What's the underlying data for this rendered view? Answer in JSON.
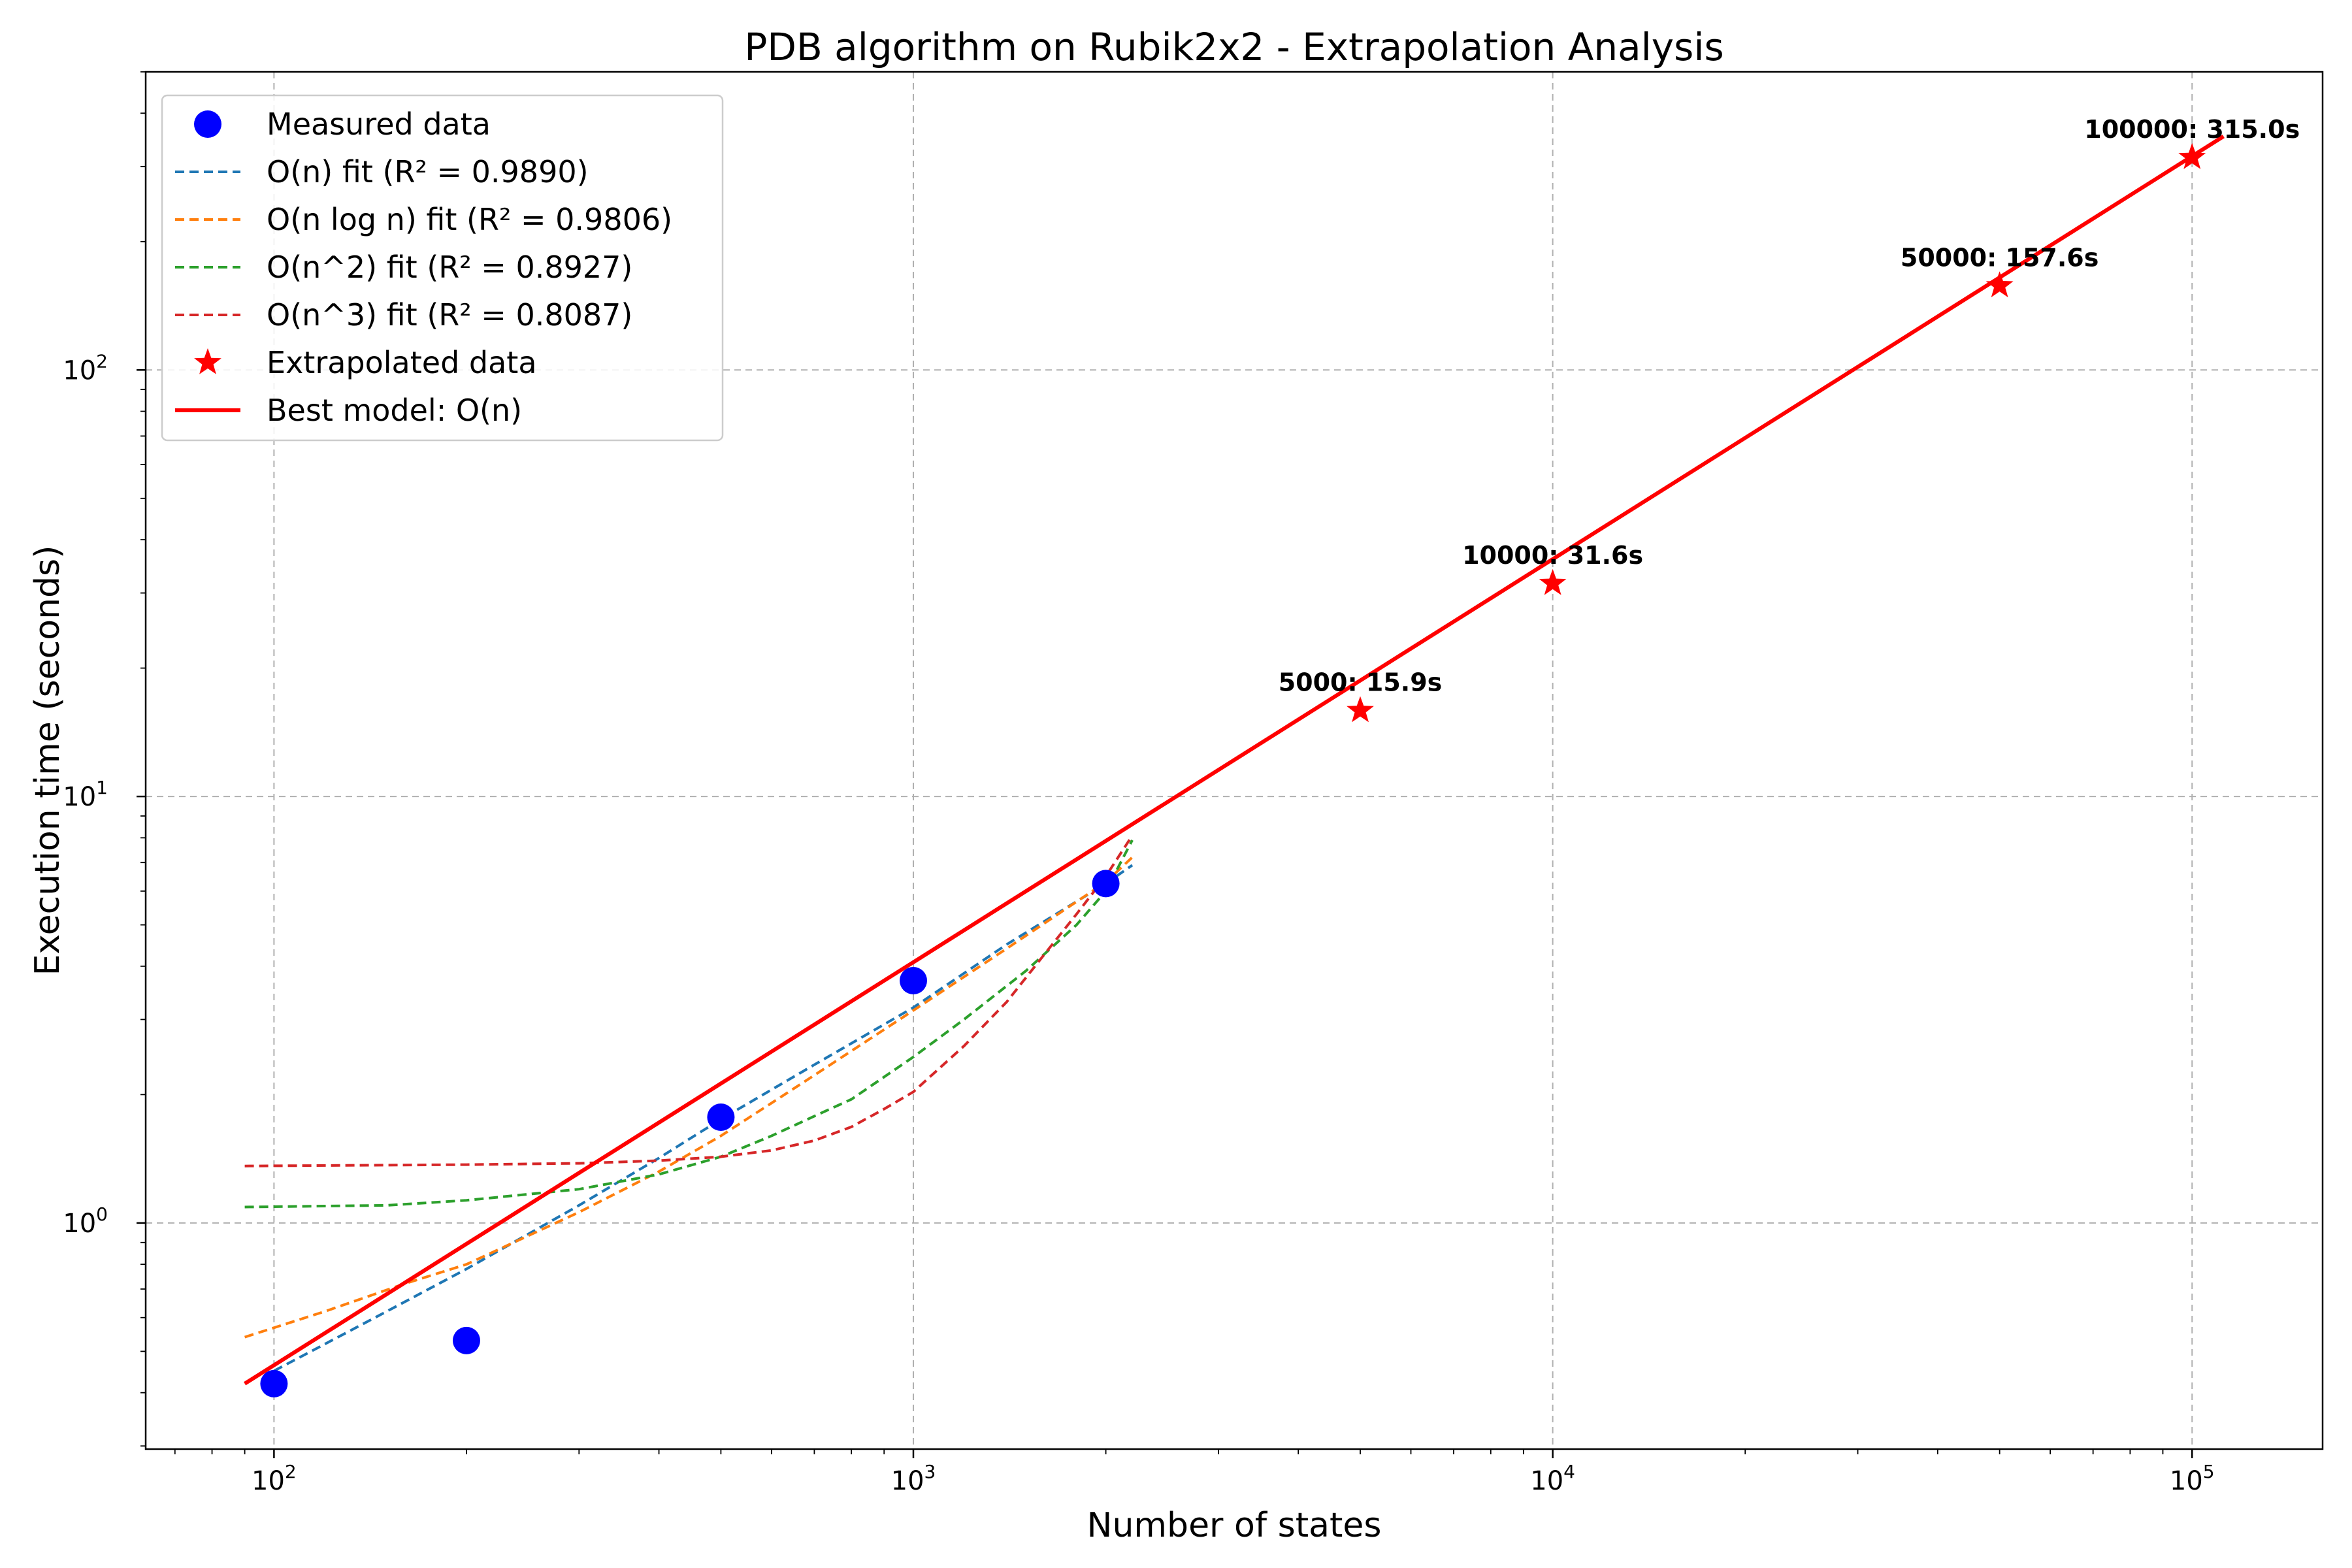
{
  "chart_data": {
    "type": "line",
    "title": "PDB algorithm on Rubik2x2 - Extrapolation Analysis",
    "xlabel": "Number of states",
    "ylabel": "Execution time (seconds)",
    "xscale": "log",
    "yscale": "log",
    "xlim": [
      63,
      160000
    ],
    "ylim": [
      0.295,
      500
    ],
    "grid": true,
    "legend_position": "top-left",
    "x_ticks": [
      {
        "base": "10",
        "exp": "2",
        "value": 100
      },
      {
        "base": "10",
        "exp": "3",
        "value": 1000
      },
      {
        "base": "10",
        "exp": "4",
        "value": 10000
      },
      {
        "base": "10",
        "exp": "5",
        "value": 100000
      }
    ],
    "y_ticks": [
      {
        "base": "10",
        "exp": "0",
        "value": 1
      },
      {
        "base": "10",
        "exp": "1",
        "value": 10
      },
      {
        "base": "10",
        "exp": "2",
        "value": 100
      }
    ],
    "measured": {
      "name": "Measured data",
      "color": "#0000ff",
      "x": [
        100,
        200,
        500,
        1000,
        2000
      ],
      "y": [
        0.42,
        0.53,
        1.77,
        3.7,
        6.25
      ]
    },
    "fits": [
      {
        "name": "O(n) fit (R² = 0.9890)",
        "color": "#1f77b4",
        "x": [
          100,
          150,
          200,
          300,
          400,
          500,
          700,
          1000,
          1400,
          2000,
          2200
        ],
        "y": [
          0.45,
          0.62,
          0.78,
          1.1,
          1.42,
          1.75,
          2.35,
          3.2,
          4.5,
          6.25,
          6.9
        ]
      },
      {
        "name": "O(n log n) fit (R² = 0.9806)",
        "color": "#ff7f0e",
        "x": [
          90,
          120,
          160,
          200,
          300,
          400,
          500,
          700,
          1000,
          1400,
          2000,
          2200
        ],
        "y": [
          0.54,
          0.62,
          0.72,
          0.8,
          1.06,
          1.32,
          1.6,
          2.22,
          3.15,
          4.4,
          6.3,
          7.2
        ]
      },
      {
        "name": "O(n^2) fit (R² = 0.8927)",
        "color": "#2ca02c",
        "x": [
          90,
          150,
          200,
          300,
          400,
          500,
          600,
          700,
          800,
          1000,
          1200,
          1500,
          1800,
          2000,
          2200
        ],
        "y": [
          1.09,
          1.1,
          1.13,
          1.2,
          1.3,
          1.43,
          1.6,
          1.78,
          1.95,
          2.45,
          3.0,
          3.9,
          5.0,
          6.0,
          7.9
        ]
      },
      {
        "name": "O(n^3) fit (R² = 0.8087)",
        "color": "#d62728",
        "x": [
          90,
          200,
          300,
          400,
          500,
          600,
          700,
          800,
          900,
          1000,
          1200,
          1400,
          1600,
          1800,
          2000,
          2200
        ],
        "y": [
          1.36,
          1.37,
          1.38,
          1.4,
          1.43,
          1.48,
          1.56,
          1.68,
          1.85,
          2.03,
          2.6,
          3.3,
          4.25,
          5.3,
          6.5,
          8.1
        ]
      }
    ],
    "extrapolated": {
      "name": "Extrapolated data",
      "color": "#ff0000",
      "x": [
        5000,
        10000,
        50000,
        100000
      ],
      "y": [
        15.9,
        31.6,
        157.6,
        315.0
      ],
      "labels": [
        "5000: 15.9s",
        "10000: 31.6s",
        "50000: 157.6s",
        "100000: 315.0s"
      ]
    },
    "best_model": {
      "name": "Best model: O(n)",
      "color": "#ff0000",
      "x": [
        90,
        112000
      ],
      "y": [
        0.42,
        353
      ]
    }
  }
}
